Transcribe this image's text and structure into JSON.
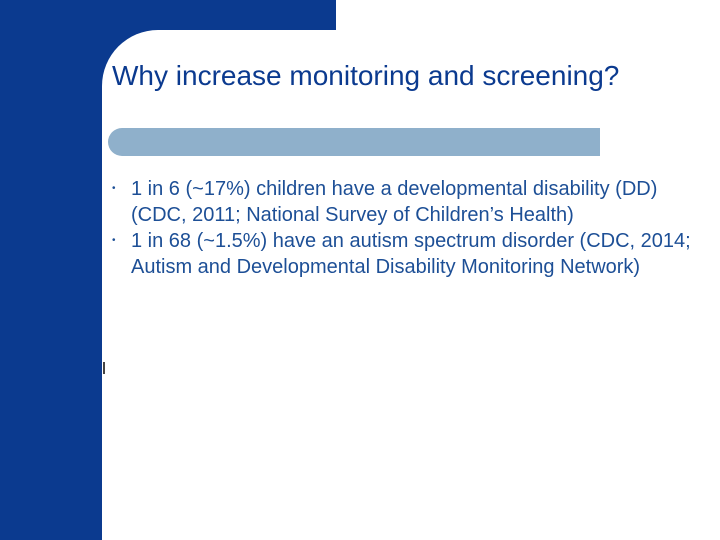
{
  "slide": {
    "title": "Why increase monitoring and screening?",
    "bullets": [
      {
        "marker": "•",
        "text": "1 in 6 (~17%) children have a developmental disability (DD) (CDC, 2011; National Survey of Children’s Health)"
      },
      {
        "marker": "•",
        "text": "1 in 68 (~1.5%) have an autism spectrum disorder (CDC, 2014; Autism and Developmental Disability Monitoring Network)"
      }
    ]
  },
  "colors": {
    "brand_blue": "#0b3a8f",
    "divider_blue": "#8fb0cb",
    "text_blue": "#1d4f96"
  }
}
